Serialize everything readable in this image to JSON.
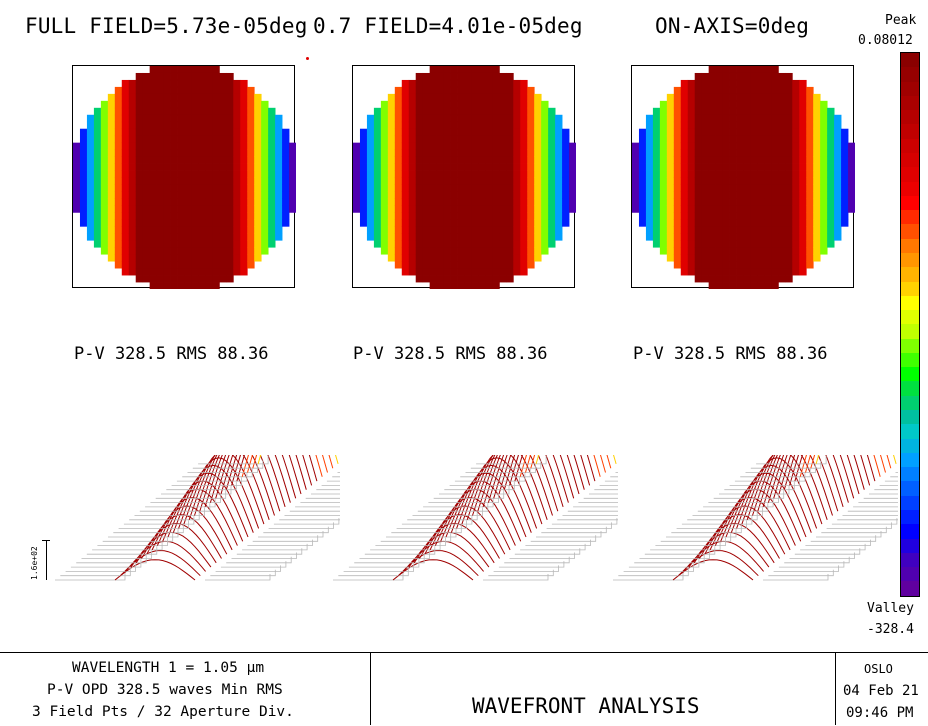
{
  "titles": {
    "full_field": "FULL FIELD=5.73e-05deg",
    "partial_field": "0.7 FIELD=4.01e-05deg",
    "on_axis": "ON-AXIS=0deg"
  },
  "panels": [
    {
      "stats": "P-V 328.5 RMS 88.36"
    },
    {
      "stats": "P-V 328.5 RMS 88.36"
    },
    {
      "stats": "P-V 328.5 RMS 88.36"
    }
  ],
  "plot_axis_label": "1.6e+02",
  "colorbar": {
    "peak_label": "Peak",
    "peak_value": "0.08012",
    "valley_label": "Valley",
    "valley_value": "-328.4",
    "colors": [
      "#8b0000",
      "#960000",
      "#a00000",
      "#ab0000",
      "#b50000",
      "#c00000",
      "#cc0000",
      "#d60000",
      "#e00000",
      "#eb0000",
      "#ff0000",
      "#ff2a00",
      "#ff5000",
      "#ff7800",
      "#ff9600",
      "#ffb400",
      "#ffd200",
      "#ffff00",
      "#e0ff00",
      "#c0ff00",
      "#80ff00",
      "#40ff00",
      "#00ff00",
      "#00e040",
      "#00d070",
      "#00c0a0",
      "#00c8c8",
      "#00b4e0",
      "#00a0ff",
      "#0080ff",
      "#0060ff",
      "#0040ff",
      "#0020ff",
      "#0000ff",
      "#2000e0",
      "#4000c0",
      "#5000b0",
      "#6000a0"
    ]
  },
  "footer": {
    "wavelength": "WAVELENGTH 1 = 1.05 μm",
    "opd": "P-V OPD 328.5 waves Min RMS",
    "fields": "3 Field Pts / 32 Aperture Div.",
    "title": "WAVEFRONT ANALYSIS",
    "program": "OSLO",
    "date": "04 Feb 21",
    "time": "09:46 PM"
  }
}
